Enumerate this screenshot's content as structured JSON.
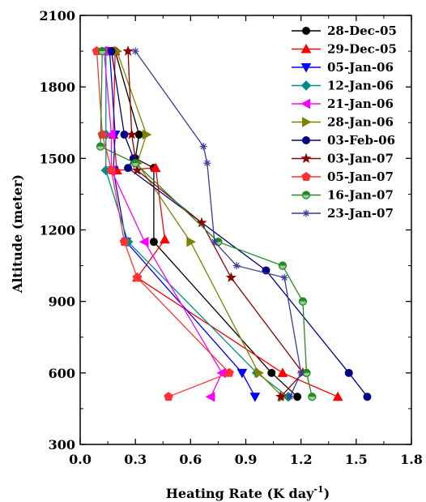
{
  "chart_data": {
    "type": "line",
    "title": "",
    "xlabel": "Heating Rate (K day",
    "xlabel_sup": "-1",
    "xlabel_close": ")",
    "ylabel": "Altitude (meter)",
    "xlim": [
      0.0,
      1.8
    ],
    "ylim": [
      300,
      2100
    ],
    "xticks": [
      0.0,
      0.3,
      0.6,
      0.9,
      1.2,
      1.5,
      1.8
    ],
    "xtick_labels": [
      "0.0",
      "0.3",
      "0.6",
      "0.9",
      "1.2",
      "1.5",
      "1.8"
    ],
    "yticks": [
      300,
      600,
      900,
      1200,
      1500,
      1800,
      2100
    ],
    "ytick_labels": [
      "300",
      "600",
      "900",
      "1200",
      "1500",
      "1800",
      "2100"
    ],
    "grid": false,
    "legend_position": "top-right",
    "series": [
      {
        "name": "28-Dec-05",
        "color": "#000000",
        "marker": "circle",
        "points": [
          [
            0.19,
            1950
          ],
          [
            0.32,
            1600
          ],
          [
            0.3,
            1500
          ],
          [
            0.4,
            1460
          ],
          [
            0.4,
            1150
          ],
          [
            1.04,
            600
          ],
          [
            1.18,
            500
          ]
        ]
      },
      {
        "name": "29-Dec-05",
        "color": "#ff0000",
        "marker": "triangle-up",
        "points": [
          [
            0.19,
            1950
          ],
          [
            0.18,
            1600
          ],
          [
            0.2,
            1450
          ],
          [
            0.41,
            1460
          ],
          [
            0.46,
            1160
          ],
          [
            0.31,
            1000
          ],
          [
            1.1,
            600
          ],
          [
            1.4,
            500
          ]
        ]
      },
      {
        "name": "05-Jan-06",
        "color": "#0000ff",
        "marker": "triangle-down",
        "points": [
          [
            0.16,
            1950
          ],
          [
            0.19,
            1600
          ],
          [
            0.18,
            1450
          ],
          [
            0.25,
            1150
          ],
          [
            0.88,
            600
          ],
          [
            0.95,
            500
          ]
        ]
      },
      {
        "name": "12-Jan-06",
        "color": "#008b8b",
        "marker": "diamond",
        "points": [
          [
            0.14,
            1950
          ],
          [
            0.14,
            1600
          ],
          [
            0.14,
            1450
          ],
          [
            0.26,
            1150
          ],
          [
            0.96,
            600
          ],
          [
            1.13,
            500
          ]
        ]
      },
      {
        "name": "21-Jan-06",
        "color": "#ff00ff",
        "marker": "triangle-left",
        "points": [
          [
            0.13,
            1950
          ],
          [
            0.17,
            1600
          ],
          [
            0.17,
            1450
          ],
          [
            0.35,
            1150
          ],
          [
            0.77,
            600
          ],
          [
            0.71,
            500
          ]
        ]
      },
      {
        "name": "28-Jan-06",
        "color": "#808000",
        "marker": "triangle-right",
        "points": [
          [
            0.2,
            1950
          ],
          [
            0.36,
            1600
          ],
          [
            0.31,
            1480
          ],
          [
            0.6,
            1150
          ],
          [
            0.97,
            600
          ],
          [
            1.1,
            500
          ]
        ]
      },
      {
        "name": "03-Feb-06",
        "color": "#000080",
        "marker": "circle",
        "points": [
          [
            0.17,
            1950
          ],
          [
            0.24,
            1600
          ],
          [
            0.29,
            1500
          ],
          [
            0.26,
            1460
          ],
          [
            1.01,
            1030
          ],
          [
            1.46,
            600
          ],
          [
            1.56,
            500
          ]
        ]
      },
      {
        "name": "03-Jan-07",
        "color": "#8b0000",
        "marker": "star",
        "points": [
          [
            0.26,
            1950
          ],
          [
            0.28,
            1600
          ],
          [
            0.31,
            1450
          ],
          [
            0.66,
            1230
          ],
          [
            0.82,
            1000
          ],
          [
            1.21,
            600
          ],
          [
            1.09,
            500
          ]
        ]
      },
      {
        "name": "05-Jan-07",
        "color": "#ff3333",
        "marker": "pentagon",
        "points": [
          [
            0.09,
            1950
          ],
          [
            0.12,
            1600
          ],
          [
            0.17,
            1450
          ],
          [
            0.24,
            1150
          ],
          [
            0.31,
            1000
          ],
          [
            0.81,
            600
          ],
          [
            0.48,
            500
          ]
        ]
      },
      {
        "name": "16-Jan-07",
        "color": "#228b22",
        "marker": "circle-half",
        "points": [
          [
            0.12,
            1950
          ],
          [
            0.11,
            1550
          ],
          [
            0.3,
            1480
          ],
          [
            0.75,
            1150
          ],
          [
            1.1,
            1050
          ],
          [
            1.21,
            900
          ],
          [
            1.23,
            600
          ],
          [
            1.26,
            500
          ]
        ]
      },
      {
        "name": "23-Jan-07",
        "color": "#3a3a99",
        "marker": "asterisk",
        "points": [
          [
            0.3,
            1950
          ],
          [
            0.67,
            1550
          ],
          [
            0.69,
            1480
          ],
          [
            0.73,
            1150
          ],
          [
            0.85,
            1050
          ],
          [
            1.11,
            1000
          ],
          [
            1.2,
            600
          ],
          [
            1.14,
            500
          ]
        ]
      }
    ]
  }
}
